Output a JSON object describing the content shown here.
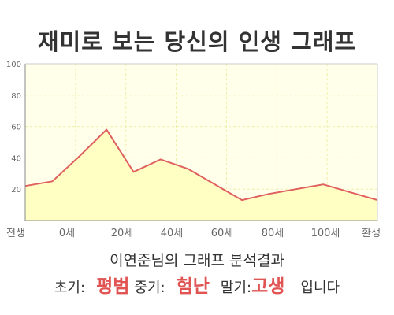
{
  "chart_data": {
    "type": "area",
    "title": "재미로 보는 당신의 인생 그래프",
    "x_ticks": [
      "전생",
      "0세",
      "20세",
      "40세",
      "60세",
      "80세",
      "100세",
      "환생"
    ],
    "values": [
      22,
      25,
      41,
      58,
      31,
      39,
      33,
      23,
      13,
      17,
      20,
      23,
      18,
      13
    ],
    "ylim": [
      0,
      100
    ],
    "y_ticks": [
      20,
      40,
      60,
      80,
      100
    ],
    "grid": true,
    "colors": {
      "line": "#e06060",
      "fill": "#ffffc4",
      "plot_bg": "#ffffea",
      "grid": "#eeeeaa"
    }
  },
  "summary": {
    "line1": "이연준님의 그래프 분석결과",
    "early_label": "초기:",
    "early_value": "평범",
    "mid_label": "중기:",
    "mid_value": "험난",
    "late_label": "말기:",
    "late_value": "고생",
    "ending": "입니다"
  }
}
